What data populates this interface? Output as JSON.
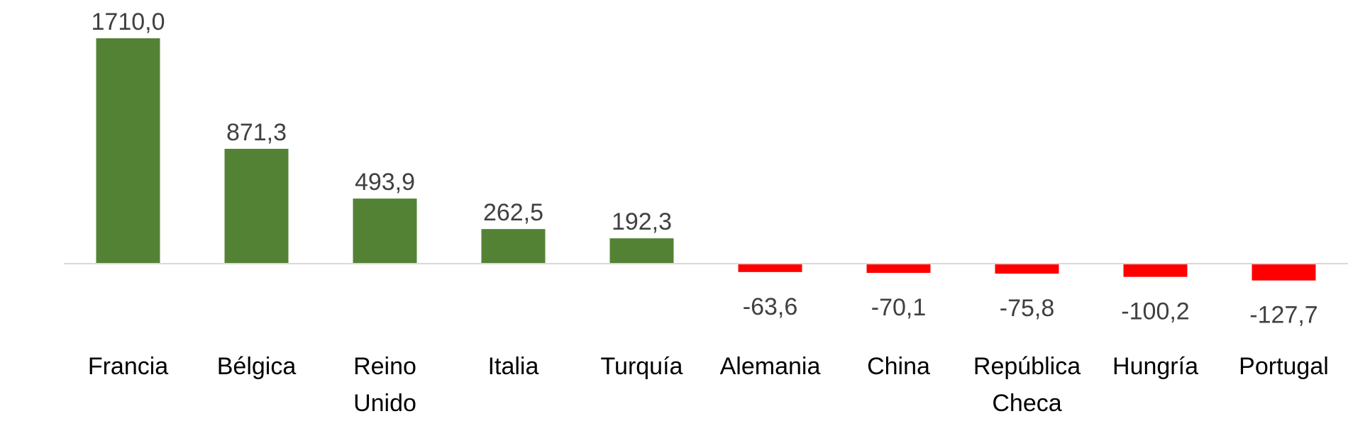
{
  "chart_data": {
    "type": "bar",
    "title": "",
    "xlabel": "",
    "ylabel": "",
    "categories": [
      [
        "Francia"
      ],
      [
        "Bélgica"
      ],
      [
        "Reino",
        "Unido"
      ],
      [
        "Italia"
      ],
      [
        "Turquía"
      ],
      [
        "Alemania"
      ],
      [
        "China"
      ],
      [
        "República",
        "Checa"
      ],
      [
        "Hungría"
      ],
      [
        "Portugal"
      ]
    ],
    "values": [
      1710.0,
      871.3,
      493.9,
      262.5,
      192.3,
      -63.6,
      -70.1,
      -75.8,
      -100.2,
      -127.7
    ],
    "value_labels": [
      "1710,0",
      "871,3",
      "493,9",
      "262,5",
      "192,3",
      "-63,6",
      "-70,1",
      "-75,8",
      "-100,2",
      "-127,7"
    ],
    "colors": {
      "positive": "#548235",
      "negative": "#ff0000",
      "baseline": "#d9d9d9"
    },
    "grid": false,
    "legend": "none"
  }
}
